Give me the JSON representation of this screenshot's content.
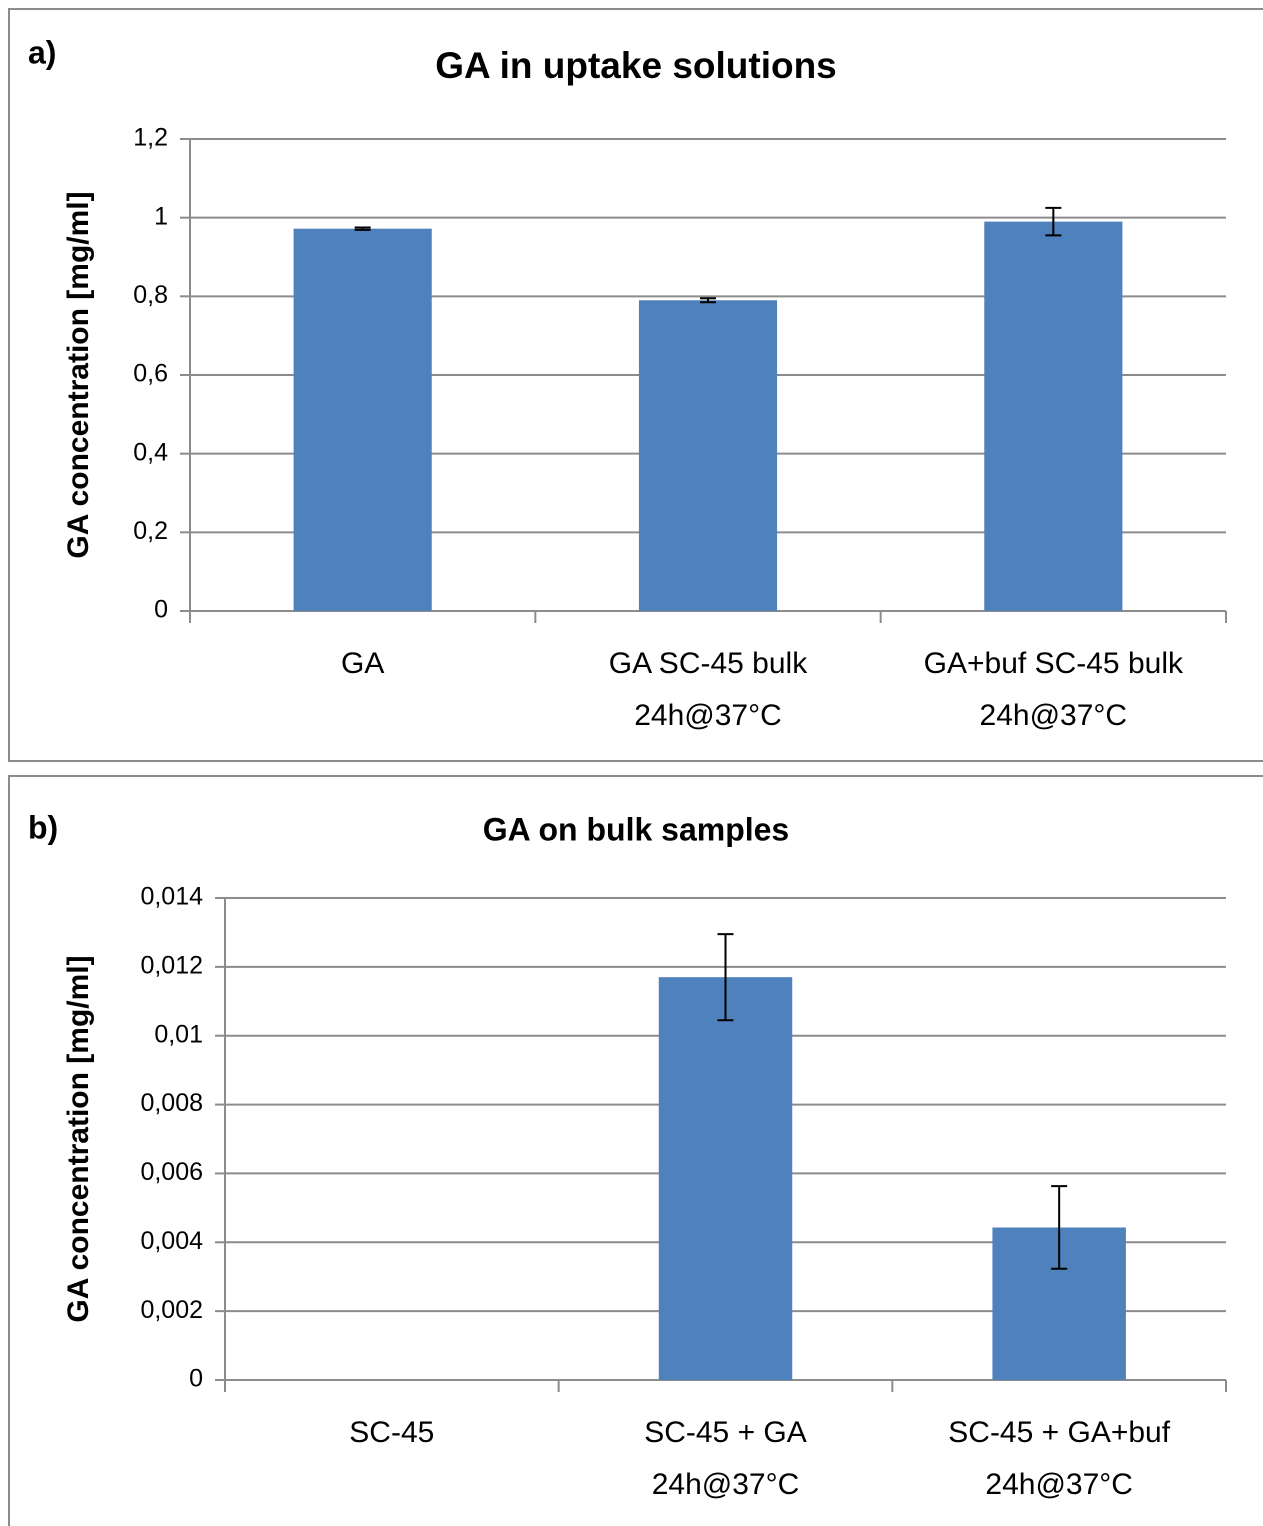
{
  "chart_data": [
    {
      "type": "bar",
      "panel": "a)",
      "title": "GA in uptake solutions",
      "y_label": "GA concentration [mg/ml]",
      "categories": [
        [
          "GA"
        ],
        [
          "GA SC-45 bulk",
          "24h@37°C"
        ],
        [
          "GA+buf SC-45 bulk",
          "24h@37°C"
        ]
      ],
      "values": [
        0.972,
        0.79,
        0.99
      ],
      "errors": [
        0.003,
        0.005,
        0.035
      ],
      "color": "#4f81bd",
      "ylim": [
        0,
        1.2
      ],
      "yticks": [
        0,
        {
          "value": 0.2,
          "label": "0,2"
        },
        {
          "value": 0.4,
          "label": "0,4"
        },
        {
          "value": 0.6,
          "label": "0,6"
        },
        {
          "value": 0.8,
          "label": "0,8"
        },
        1,
        {
          "value": 1.2,
          "label": "1,2"
        }
      ],
      "grid": true
    },
    {
      "type": "bar",
      "panel": "b)",
      "title": "GA on bulk samples",
      "y_label": "GA concentration [mg/ml]",
      "categories": [
        [
          "SC-45"
        ],
        [
          "SC-45 + GA",
          "24h@37°C"
        ],
        [
          "SC-45 + GA+buf",
          "24h@37°C"
        ]
      ],
      "values": [
        0,
        0.0117,
        0.00443
      ],
      "errors": [
        0,
        0.00125,
        0.0012
      ],
      "color": "#4f81bd",
      "ylim": [
        0,
        0.014
      ],
      "yticks": [
        0,
        {
          "value": 0.002,
          "label": "0,002"
        },
        {
          "value": 0.004,
          "label": "0,004"
        },
        {
          "value": 0.006,
          "label": "0,006"
        },
        {
          "value": 0.008,
          "label": "0,008"
        },
        {
          "value": 0.01,
          "label": "0,01"
        },
        {
          "value": 0.012,
          "label": "0,012"
        },
        {
          "value": 0.014,
          "label": "0,014"
        }
      ],
      "grid": true
    }
  ]
}
